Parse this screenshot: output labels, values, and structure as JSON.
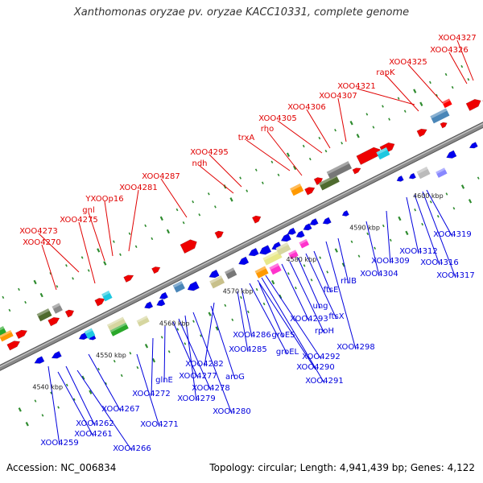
{
  "title": "Xanthomonas oryzae pv. oryzae KACC10331, complete genome",
  "accession": "Accession: NC_006834",
  "info": "Topology: circular; Length: 4,941,439 bp; Genes: 4,122",
  "colors": {
    "backbone": "#8a8a8a",
    "tick": "#2e8b2e",
    "forward": "#ee0000",
    "reverse": "#0000ee",
    "forward_label": "#e00000",
    "reverse_label": "#0000dd"
  },
  "scale_labels": [
    {
      "text": "4540 kbp",
      "kbp": 4540
    },
    {
      "text": "4550 kbp",
      "kbp": 4550
    },
    {
      "text": "4560 kbp",
      "kbp": 4560
    },
    {
      "text": "4570 kbp",
      "kbp": 4570
    },
    {
      "text": "4580 kbp",
      "kbp": 4580
    },
    {
      "text": "4590 kbp",
      "kbp": 4590
    },
    {
      "text": "4600 kbp",
      "kbp": 4600
    }
  ],
  "forward_labels": [
    "XOO4270",
    "XOO4273",
    "XOO4275",
    "gnl",
    "YXOOp16",
    "XOO4281",
    "XOO4287",
    "ndh",
    "XOO4295",
    "trxA",
    "rho",
    "XOO4305",
    "XOO4306",
    "XOO4307",
    "XOO4321",
    "rapK",
    "XOO4325",
    "XOO4326",
    "XOO4327"
  ],
  "reverse_labels": [
    "XOO4259",
    "XOO4261",
    "XOO4262",
    "XOO4266",
    "XOO4267",
    "XOO4271",
    "XOO4272",
    "glnE",
    "XOO4277",
    "XOO4278",
    "XOO4279",
    "XOO4280",
    "aroG",
    "XOO4282",
    "XOO4285",
    "XOO4286",
    "groEL",
    "groES",
    "XOO4290",
    "XOO4291",
    "XOO4292",
    "XOO4293",
    "rpoH",
    "ung",
    "ftsX",
    "ftsE",
    "XOO4298",
    "rhlB",
    "XOO4304",
    "XOO4309",
    "XOO4312",
    "XOO4316",
    "XOO4317",
    "XOO4319"
  ]
}
